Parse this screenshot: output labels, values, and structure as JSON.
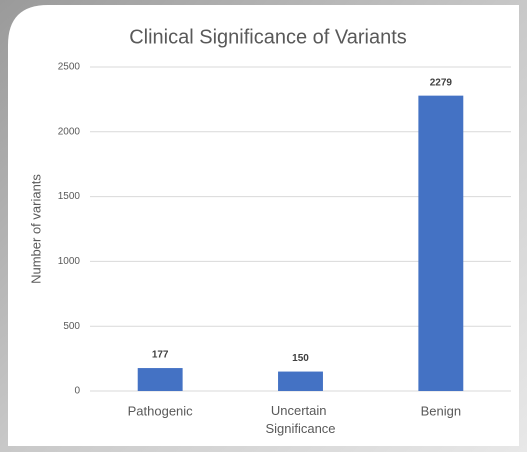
{
  "chart_data": {
    "type": "bar",
    "title": "Clinical Significance of Variants",
    "y_label": "Number of variants",
    "categories": [
      "Pathogenic",
      "Uncertain Significance",
      "Benign"
    ],
    "values": [
      177,
      150,
      2279
    ],
    "color": "#4472c4",
    "ylim": [
      0,
      2500
    ],
    "yticks": [
      0,
      500,
      1000,
      1500,
      2000,
      2500
    ],
    "grid": true
  }
}
